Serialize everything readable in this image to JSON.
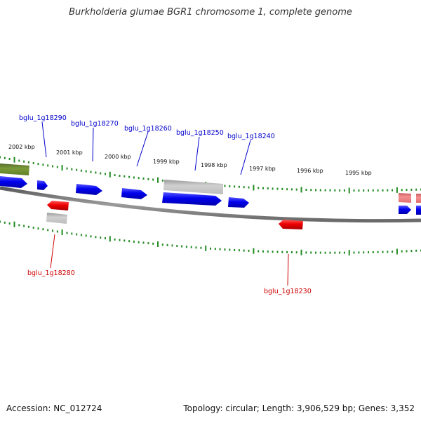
{
  "title": "Burkholderia glumae BGR1 chromosome 1, complete genome",
  "footer": {
    "accession": "Accession: NC_012724",
    "summary": "Topology: circular; Length: 3,906,529 bp; Genes: 3,352"
  },
  "colors": {
    "forward": "#0000ee",
    "reverse": "#ee0000",
    "pseudo": "#b0b0b0",
    "rna": "#6b8e23",
    "faded": "#f08080",
    "tick": "#228b22",
    "backbone": "#808080",
    "label_forward": "#0000cc",
    "label_reverse": "#cc0000"
  },
  "scale_labels": [
    "2002 kbp",
    "2001 kbp",
    "2000 kbp",
    "1999 kbp",
    "1998 kbp",
    "1997 kbp",
    "1996 kbp",
    "1995 kbp"
  ],
  "gene_labels": {
    "forward": [
      "bglu_1g18290",
      "bglu_1g18270",
      "bglu_1g18260",
      "bglu_1g18250",
      "bglu_1g18240"
    ],
    "reverse": [
      "bglu_1g18280",
      "bglu_1g18230"
    ]
  }
}
